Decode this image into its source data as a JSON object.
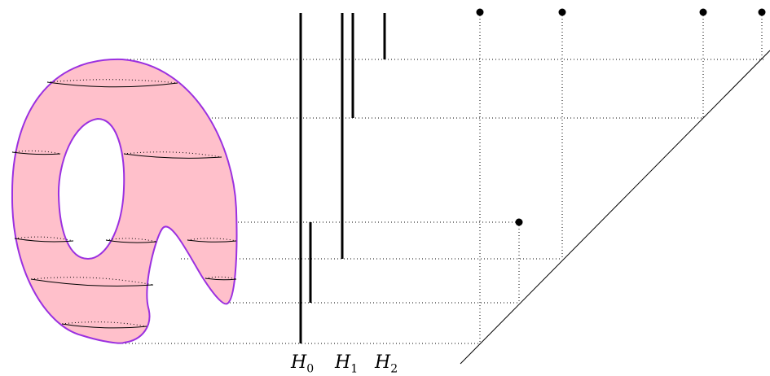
{
  "colors": {
    "surface_fill": "#ffc0cb",
    "surface_outline": "#9b30e0",
    "ink": "#000000"
  },
  "labels": [
    {
      "letter": "H",
      "index": "0"
    },
    {
      "letter": "H",
      "index": "1"
    },
    {
      "letter": "H",
      "index": "2"
    }
  ]
}
